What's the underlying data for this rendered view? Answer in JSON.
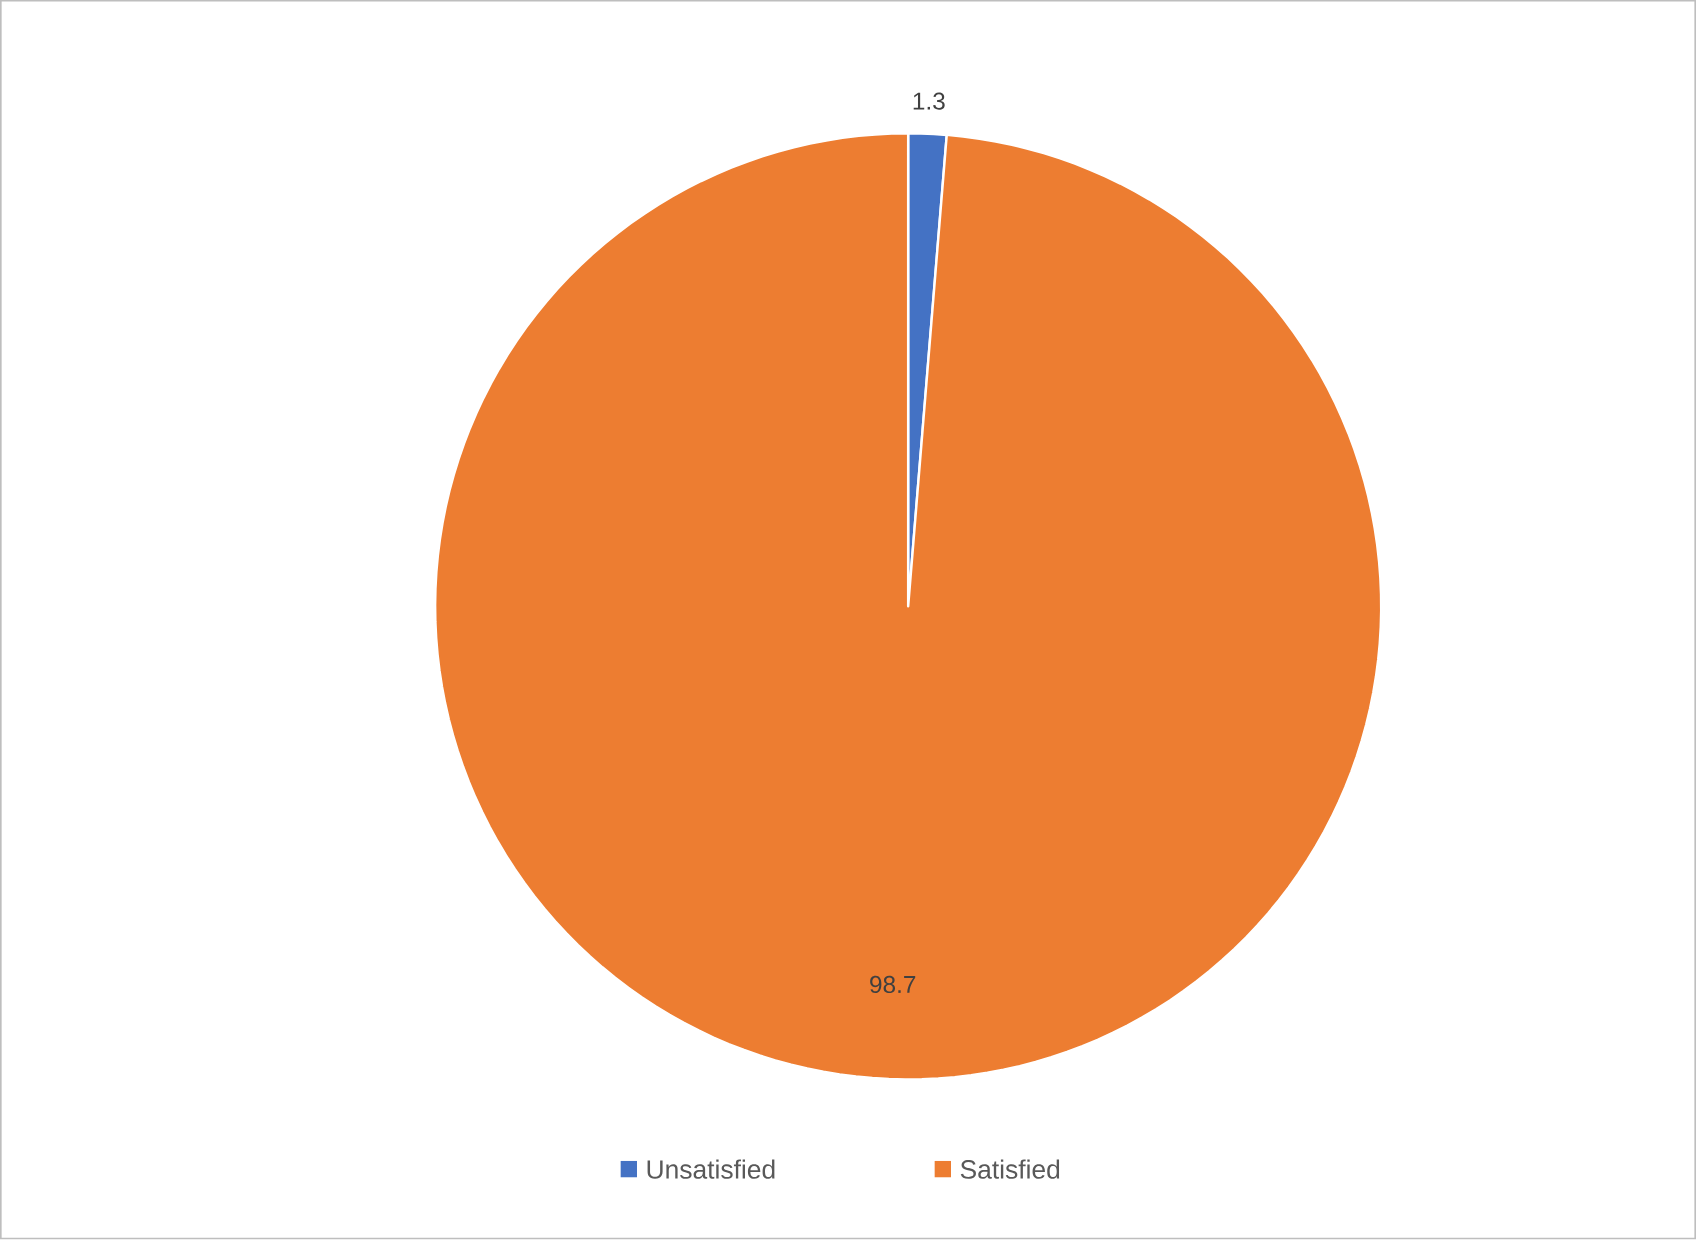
{
  "chart_data": {
    "type": "pie",
    "categories": [
      "Unsatisfied",
      "Satisfied"
    ],
    "values": [
      1.3,
      98.7
    ],
    "colors": [
      "#4472c4",
      "#ed7d31"
    ],
    "data_labels": true,
    "legend": "bottom"
  }
}
